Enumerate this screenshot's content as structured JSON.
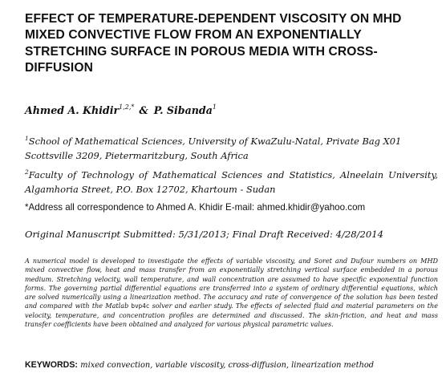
{
  "paper": {
    "title": "EFFECT OF TEMPERATURE-DEPENDENT VISCOSITY ON MHD MIXED CONVECTIVE FLOW FROM AN EXPONENTIALLY STRETCHING SURFACE IN POROUS MEDIA WITH CROSS-DIFFUSION",
    "authors": {
      "author1_name": "Ahmed A. Khidir",
      "author1_sup": "1,2,*",
      "separator": "&",
      "author2_name": "P. Sibanda",
      "author2_sup": "1"
    },
    "affiliations": [
      {
        "sup": "1",
        "text": "School of Mathematical Sciences, University of KwaZulu-Natal, Private Bag X01 Scottsville 3209, Pietermaritzburg, South Africa"
      },
      {
        "sup": "2",
        "text": "Faculty of Technology of Mathematical Sciences and Statistics, Alneelain University, Algamhoria Street, P.O. Box 12702, Khartoum - Sudan"
      }
    ],
    "correspondence": "*Address all correspondence to Ahmed A. Khidir E-mail: ahmed.khidir@yahoo.com",
    "submission": "Original Manuscript Submitted: 5/31/2013; Final Draft Received: 4/28/2014",
    "abstract": {
      "part1": "A numerical model is developed to investigate the effects of variable viscosity, and Soret and Dufour numbers on MHD mixed convective flow, heat and mass transfer from an exponentially stretching vertical surface embedded in a porous medium. Stretching velocity, wall temperature, and wall concentration are assumed to have specific exponential function forms. The governing partial differential equations are transferred into a system of ordinary differential equations, which are solved numerically using a linearization method. The accuracy and rate of convergence of the solution has been tested and compared with the Matlab ",
      "code": "bvp4c",
      "part2": " solver and earlier study. The effects of selected fluid and material parameters on the velocity, temperature, and concentration profiles are determined and discussed. The skin-friction, and heat and mass transfer coefficients have been obtained and analyzed for various physical parametric values."
    },
    "keywords": {
      "label": "KEYWORDS:",
      "text": "mixed convection, variable viscosity, cross-diffusion, linearization method"
    }
  }
}
